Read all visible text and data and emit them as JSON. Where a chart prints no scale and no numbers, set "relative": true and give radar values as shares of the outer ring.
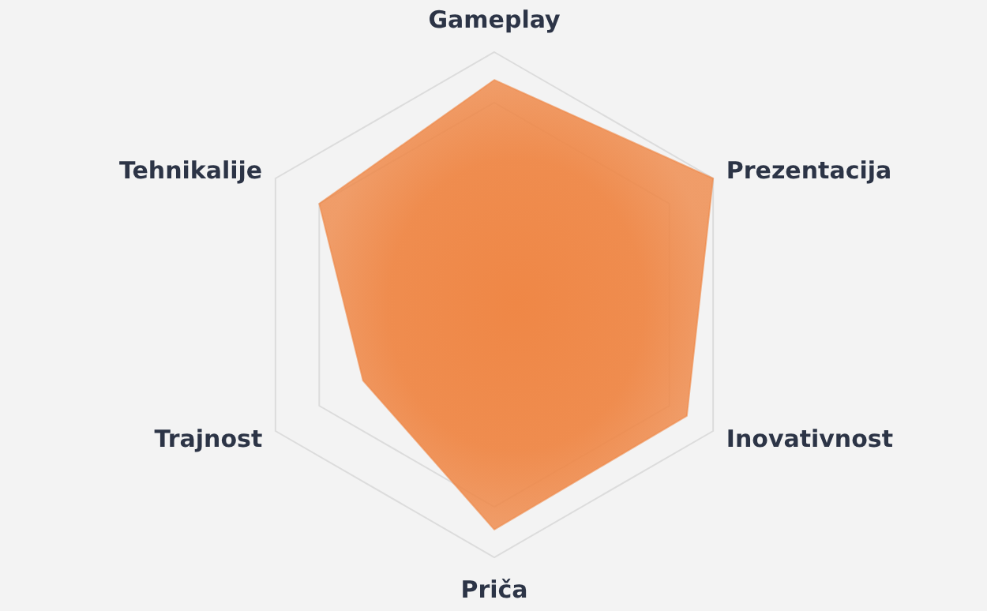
{
  "chart_data": {
    "type": "radar",
    "relative": true,
    "grid": true,
    "categories": [
      "Gameplay",
      "Prezentacija",
      "Inovativnost",
      "Priča",
      "Trajnost",
      "Tehnikalije"
    ],
    "series": [
      {
        "color": "#ef8746",
        "values": [
          0.89,
          1,
          0.88,
          0.89,
          0.6,
          0.8
        ]
      }
    ]
  }
}
